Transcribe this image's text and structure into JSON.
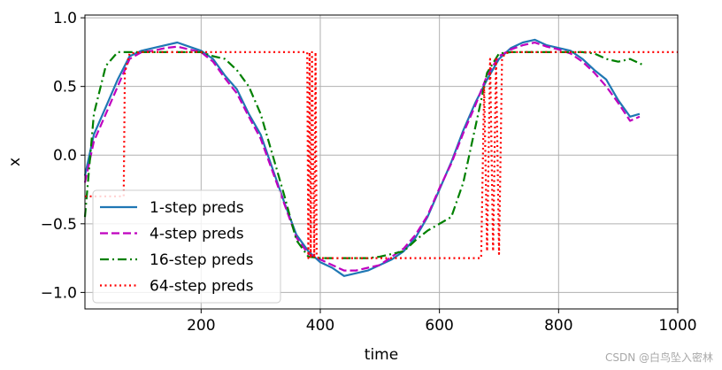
{
  "chart_data": {
    "type": "line",
    "xlabel": "time",
    "ylabel": "x",
    "xlim": [
      5,
      1000
    ],
    "ylim": [
      -1.12,
      1.02
    ],
    "x_ticks": [
      200,
      400,
      600,
      800,
      1000
    ],
    "x_tick_labels": [
      "200",
      "400",
      "600",
      "800",
      "1000"
    ],
    "y_ticks": [
      -1.0,
      -0.5,
      0.0,
      0.5,
      1.0
    ],
    "y_tick_labels": [
      "−1.0",
      "−0.5",
      "0.0",
      "0.5",
      "1.0"
    ],
    "grid": true,
    "legend_position": "lower-left",
    "series": [
      {
        "name": "1-step preds",
        "color": "#1f77b4",
        "style": "solid",
        "x": [
          5,
          20,
          40,
          60,
          80,
          100,
          120,
          140,
          160,
          180,
          200,
          220,
          240,
          260,
          280,
          300,
          320,
          340,
          360,
          380,
          400,
          420,
          440,
          460,
          480,
          500,
          520,
          540,
          560,
          580,
          600,
          620,
          640,
          660,
          680,
          700,
          720,
          740,
          760,
          780,
          800,
          820,
          840,
          860,
          880,
          900,
          920,
          936
        ],
        "y": [
          -0.15,
          0.15,
          0.35,
          0.55,
          0.72,
          0.76,
          0.78,
          0.8,
          0.82,
          0.79,
          0.76,
          0.7,
          0.58,
          0.48,
          0.3,
          0.15,
          -0.1,
          -0.35,
          -0.58,
          -0.7,
          -0.78,
          -0.82,
          -0.88,
          -0.86,
          -0.84,
          -0.8,
          -0.76,
          -0.7,
          -0.6,
          -0.45,
          -0.25,
          -0.05,
          0.18,
          0.38,
          0.55,
          0.7,
          0.78,
          0.82,
          0.84,
          0.8,
          0.78,
          0.76,
          0.7,
          0.62,
          0.55,
          0.4,
          0.28,
          0.3
        ]
      },
      {
        "name": "4-step preds",
        "color": "#bf00bf",
        "style": "dashed",
        "x": [
          5,
          20,
          40,
          60,
          80,
          100,
          120,
          140,
          160,
          180,
          200,
          220,
          240,
          260,
          280,
          300,
          320,
          340,
          360,
          380,
          400,
          420,
          440,
          460,
          480,
          500,
          520,
          540,
          560,
          580,
          600,
          620,
          640,
          660,
          680,
          700,
          720,
          740,
          760,
          780,
          800,
          820,
          840,
          860,
          880,
          900,
          920,
          936
        ],
        "y": [
          -0.2,
          0.1,
          0.3,
          0.5,
          0.7,
          0.75,
          0.76,
          0.78,
          0.79,
          0.77,
          0.75,
          0.68,
          0.56,
          0.45,
          0.28,
          0.12,
          -0.12,
          -0.36,
          -0.6,
          -0.72,
          -0.76,
          -0.8,
          -0.84,
          -0.84,
          -0.82,
          -0.8,
          -0.74,
          -0.68,
          -0.58,
          -0.44,
          -0.24,
          -0.06,
          0.16,
          0.36,
          0.58,
          0.72,
          0.77,
          0.8,
          0.82,
          0.79,
          0.77,
          0.74,
          0.68,
          0.6,
          0.5,
          0.38,
          0.25,
          0.28
        ]
      },
      {
        "name": "16-step preds",
        "color": "#008000",
        "style": "dashdot",
        "x": [
          5,
          20,
          40,
          60,
          80,
          100,
          120,
          140,
          160,
          180,
          200,
          220,
          240,
          260,
          280,
          300,
          320,
          340,
          360,
          380,
          400,
          420,
          440,
          460,
          480,
          500,
          520,
          540,
          560,
          580,
          600,
          620,
          640,
          660,
          680,
          700,
          720,
          740,
          760,
          780,
          800,
          820,
          840,
          860,
          880,
          900,
          920,
          945
        ],
        "y": [
          -0.45,
          0.3,
          0.65,
          0.75,
          0.75,
          0.75,
          0.75,
          0.75,
          0.75,
          0.75,
          0.75,
          0.72,
          0.7,
          0.62,
          0.5,
          0.3,
          0.0,
          -0.3,
          -0.62,
          -0.74,
          -0.75,
          -0.75,
          -0.75,
          -0.75,
          -0.75,
          -0.74,
          -0.72,
          -0.7,
          -0.62,
          -0.55,
          -0.5,
          -0.45,
          -0.2,
          0.2,
          0.6,
          0.74,
          0.75,
          0.75,
          0.75,
          0.75,
          0.75,
          0.75,
          0.75,
          0.74,
          0.7,
          0.68,
          0.7,
          0.65
        ]
      },
      {
        "name": "64-step preds",
        "color": "#ff0000",
        "style": "dotted",
        "x": [
          5,
          70,
          72,
          80,
          100,
          200,
          300,
          378,
          380,
          382,
          384,
          386,
          390,
          392,
          394,
          398,
          420,
          500,
          600,
          670,
          675,
          680,
          685,
          690,
          695,
          700,
          705,
          710,
          720,
          800,
          900,
          1000
        ],
        "y": [
          -0.3,
          -0.3,
          0.6,
          0.74,
          0.75,
          0.75,
          0.75,
          0.75,
          -0.75,
          0.75,
          -0.75,
          0.75,
          -0.75,
          0.75,
          -0.74,
          -0.75,
          -0.75,
          -0.75,
          -0.75,
          -0.75,
          0.5,
          -0.7,
          0.7,
          -0.7,
          0.7,
          -0.72,
          0.7,
          0.74,
          0.75,
          0.75,
          0.75,
          0.75
        ]
      }
    ]
  },
  "watermark": "CSDN @白鸟坠入密林"
}
